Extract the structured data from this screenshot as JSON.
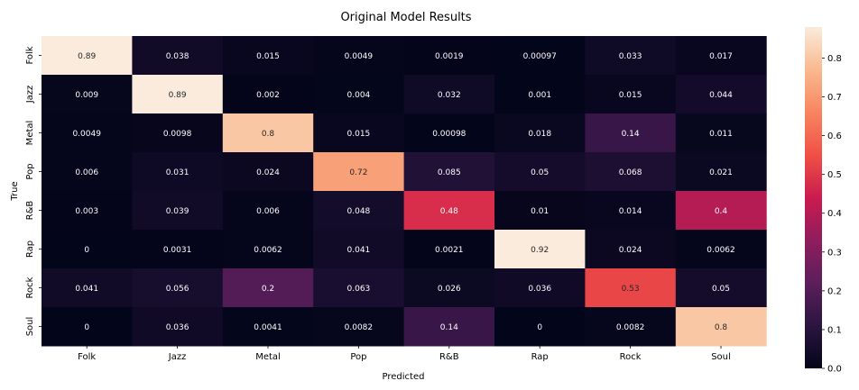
{
  "chart_data": {
    "type": "heatmap",
    "title": "Original Model Results",
    "xlabel": "Predicted",
    "ylabel": "True",
    "x_categories": [
      "Folk",
      "Jazz",
      "Metal",
      "Pop",
      "R&B",
      "Rap",
      "Rock",
      "Soul"
    ],
    "y_categories": [
      "Folk",
      "Jazz",
      "Metal",
      "Pop",
      "R&B",
      "Rap",
      "Rock",
      "Soul"
    ],
    "values": [
      [
        0.89,
        0.038,
        0.015,
        0.0049,
        0.0019,
        0.00097,
        0.033,
        0.017
      ],
      [
        0.009,
        0.89,
        0.002,
        0.004,
        0.032,
        0.001,
        0.015,
        0.044
      ],
      [
        0.0049,
        0.0098,
        0.8,
        0.015,
        0.00098,
        0.018,
        0.14,
        0.011
      ],
      [
        0.006,
        0.031,
        0.024,
        0.72,
        0.085,
        0.05,
        0.068,
        0.021
      ],
      [
        0.003,
        0.039,
        0.006,
        0.048,
        0.48,
        0.01,
        0.014,
        0.4
      ],
      [
        0,
        0.0031,
        0.0062,
        0.041,
        0.0021,
        0.92,
        0.024,
        0.0062
      ],
      [
        0.041,
        0.056,
        0.2,
        0.063,
        0.026,
        0.036,
        0.53,
        0.05
      ],
      [
        0,
        0.036,
        0.0041,
        0.0082,
        0.14,
        0,
        0.0082,
        0.8
      ]
    ],
    "labels": [
      [
        "0.89",
        "0.038",
        "0.015",
        "0.0049",
        "0.0019",
        "0.00097",
        "0.033",
        "0.017"
      ],
      [
        "0.009",
        "0.89",
        "0.002",
        "0.004",
        "0.032",
        "0.001",
        "0.015",
        "0.044"
      ],
      [
        "0.0049",
        "0.0098",
        "0.8",
        "0.015",
        "0.00098",
        "0.018",
        "0.14",
        "0.011"
      ],
      [
        "0.006",
        "0.031",
        "0.024",
        "0.72",
        "0.085",
        "0.05",
        "0.068",
        "0.021"
      ],
      [
        "0.003",
        "0.039",
        "0.006",
        "0.048",
        "0.48",
        "0.01",
        "0.014",
        "0.4"
      ],
      [
        "0",
        "0.0031",
        "0.0062",
        "0.041",
        "0.0021",
        "0.92",
        "0.024",
        "0.0062"
      ],
      [
        "0.041",
        "0.056",
        "0.2",
        "0.063",
        "0.026",
        "0.036",
        "0.53",
        "0.05"
      ],
      [
        "0",
        "0.036",
        "0.0041",
        "0.0082",
        "0.14",
        "0",
        "0.0082",
        "0.8"
      ]
    ],
    "colorbar": {
      "range": [
        0,
        0.88
      ],
      "ticks": [
        "0.0",
        "0.1",
        "0.2",
        "0.3",
        "0.4",
        "0.5",
        "0.6",
        "0.7",
        "0.8"
      ],
      "colormap": [
        "#03051a",
        "#2b1540",
        "#5c1e5c",
        "#8f1d5e",
        "#cb1b4f",
        "#f05046",
        "#f7855f",
        "#f9b98e",
        "#faebdd"
      ]
    },
    "grid": false,
    "legend": "colorbar-right"
  }
}
